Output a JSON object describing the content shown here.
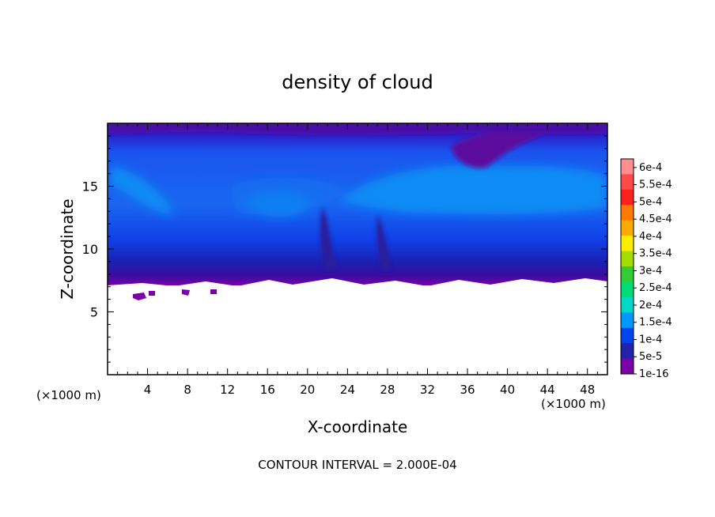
{
  "chart_data": {
    "type": "heatmap",
    "title": "density of cloud",
    "xlabel": "X-coordinate",
    "ylabel": "Z-coordinate",
    "x_unit_left": "(×1000 m)",
    "x_unit_right": "(×1000 m)",
    "footer": "CONTOUR INTERVAL = 2.000E-04",
    "xlim": [
      0,
      50
    ],
    "ylim": [
      0,
      20
    ],
    "x_ticks": [
      4,
      8,
      12,
      16,
      20,
      24,
      28,
      32,
      36,
      40,
      44,
      48
    ],
    "y_ticks": [
      5,
      10,
      15
    ],
    "colorbar": {
      "labels": [
        "6e-4",
        "5.5e-4",
        "5e-4",
        "4.5e-4",
        "4e-4",
        "3.5e-4",
        "3e-4",
        "2.5e-4",
        "2e-4",
        "1.5e-4",
        "1e-4",
        "5e-5",
        "1e-16"
      ],
      "colors": [
        "#ff8f8f",
        "#ff4a4a",
        "#ff1f1f",
        "#ff7a00",
        "#ffaa00",
        "#ffee00",
        "#a6dd00",
        "#33cc33",
        "#00dd77",
        "#00d8c8",
        "#0099ff",
        "#0044ee",
        "#2222aa",
        "#7a00a8"
      ]
    },
    "cloud_base_z": 7.2,
    "cloud_top_z": 20,
    "field_bands": [
      {
        "z_range": [
          18.5,
          20
        ],
        "value": "1e-16 to 5e-5"
      },
      {
        "z_range": [
          11,
          18.5
        ],
        "value": "1e-4 to 1.5e-4"
      },
      {
        "z_range": [
          8,
          11
        ],
        "value": "5e-5 to 1e-4"
      },
      {
        "z_range": [
          7.2,
          8
        ],
        "value": "1e-16 to 5e-5"
      }
    ]
  }
}
